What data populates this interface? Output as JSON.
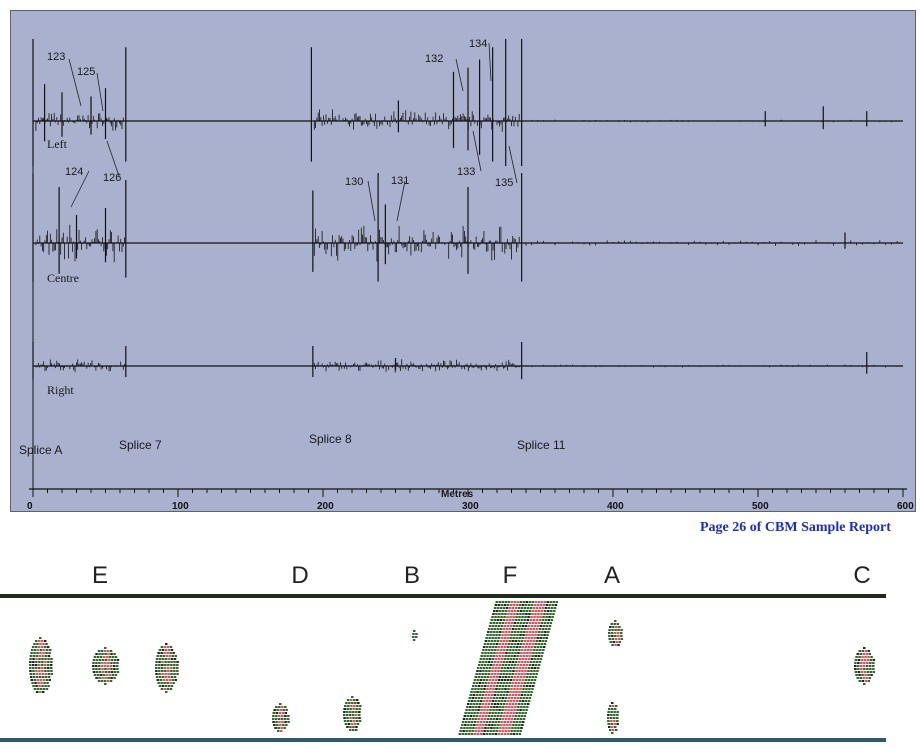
{
  "chart_data": [
    {
      "type": "line",
      "title": "",
      "xlabel": "Metres",
      "ylabel": "",
      "xlim": [
        0,
        600
      ],
      "xticks": [
        0,
        100,
        200,
        300,
        400,
        500,
        600
      ],
      "grid": false,
      "series": [
        {
          "name": "Left",
          "spikes": [
            {
              "x": 0,
              "a": 1.0
            },
            {
              "x": 8,
              "a": 0.45
            },
            {
              "x": 20,
              "a": 0.35
            },
            {
              "x": 40,
              "a": 0.3
            },
            {
              "x": 50,
              "a": 0.4
            },
            {
              "x": 64,
              "a": 0.9
            },
            {
              "x": 192,
              "a": 0.9
            },
            {
              "x": 252,
              "a": 0.25
            },
            {
              "x": 290,
              "a": 0.6
            },
            {
              "x": 300,
              "a": 0.65
            },
            {
              "x": 308,
              "a": 0.75
            },
            {
              "x": 317,
              "a": 0.9
            },
            {
              "x": 326,
              "a": 1.0
            },
            {
              "x": 337,
              "a": 1.0
            },
            {
              "x": 505,
              "a": 0.12
            },
            {
              "x": 545,
              "a": 0.18
            },
            {
              "x": 575,
              "a": 0.12
            }
          ]
        },
        {
          "name": "Centre",
          "spikes": [
            {
              "x": 0,
              "a": 1.0
            },
            {
              "x": 18,
              "a": 0.8
            },
            {
              "x": 30,
              "a": 0.4
            },
            {
              "x": 50,
              "a": 0.5
            },
            {
              "x": 64,
              "a": 0.9
            },
            {
              "x": 193,
              "a": 0.75
            },
            {
              "x": 238,
              "a": 1.0
            },
            {
              "x": 243,
              "a": 0.55
            },
            {
              "x": 300,
              "a": 0.8
            },
            {
              "x": 337,
              "a": 1.0
            },
            {
              "x": 560,
              "a": 0.15
            }
          ]
        },
        {
          "name": "Right",
          "spikes": [
            {
              "x": 0,
              "a": 0.6
            },
            {
              "x": 64,
              "a": 0.5
            },
            {
              "x": 193,
              "a": 0.5
            },
            {
              "x": 250,
              "a": 0.2
            },
            {
              "x": 337,
              "a": 0.6
            },
            {
              "x": 575,
              "a": 0.35
            }
          ]
        }
      ],
      "annotations": {
        "spike_labels": [
          "123",
          "125",
          "126",
          "124",
          "130",
          "131",
          "132",
          "134",
          "133",
          "135"
        ],
        "splices": [
          "Splice A",
          "Splice 7",
          "Splice 8",
          "Splice 11"
        ]
      }
    },
    {
      "type": "heatmap",
      "labels": [
        "E",
        "D",
        "B",
        "F",
        "A",
        "C"
      ]
    }
  ],
  "footer": "Page 26 of CBM Sample Report",
  "colors": {
    "plot_bg": "#a9b1ce",
    "trace": "#111111",
    "footer": "#1a2ecf",
    "scan_red": "#e0505a",
    "scan_green": "#2e6b2a",
    "scan_dark": "#1f2a1a"
  }
}
